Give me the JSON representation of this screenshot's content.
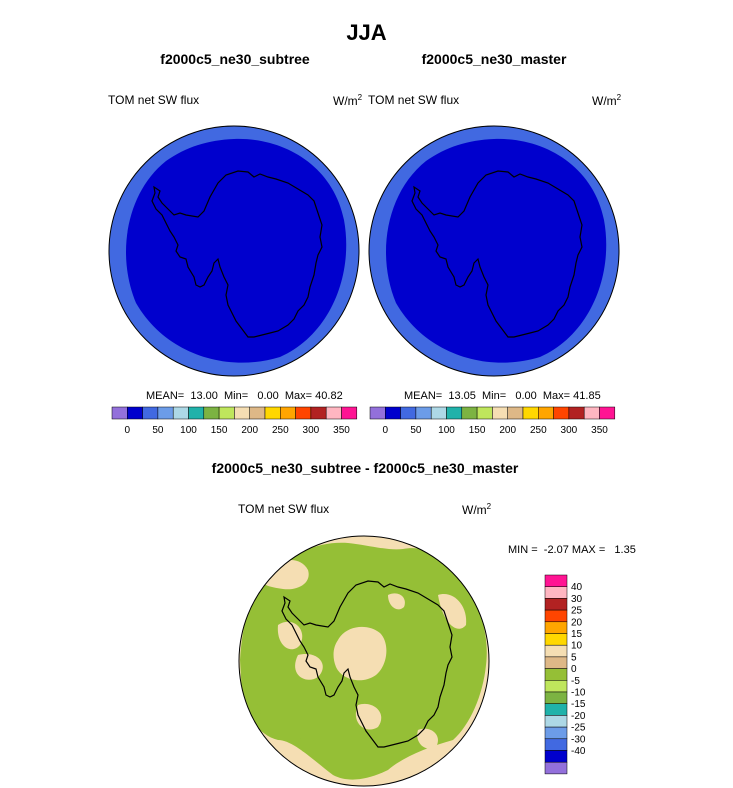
{
  "page": {
    "title": "JJA",
    "colors": {
      "deep_blue": "#0000CD",
      "royal_blue": "#4169E1",
      "olive_green": "#95BF36",
      "wheat": "#F5DEB3",
      "coastline": "#000000"
    }
  },
  "chart_data": [
    {
      "type": "heatmap",
      "projection": "south-polar-stereographic",
      "title": "f2000c5_ne30_subtree",
      "variable_label": "TOM net SW flux",
      "units": "W/m",
      "units_exp": "2",
      "stats": {
        "mean_label": "MEAN=",
        "mean": "13.00",
        "min_label": "Min=",
        "min": "0.00",
        "max_label": "Max=",
        "max": "40.82"
      },
      "colorbar": {
        "orientation": "horizontal",
        "colors": [
          "#9370DB",
          "#0000CD",
          "#4169E1",
          "#6C9CE8",
          "#ADD8E6",
          "#20B2AA",
          "#7CB342",
          "#BFE65C",
          "#F5DEB3",
          "#DEB887",
          "#FFD700",
          "#FFA500",
          "#FF4500",
          "#B22222",
          "#FFB6C1",
          "#FF1493"
        ],
        "tick_labels": [
          "0",
          "50",
          "100",
          "150",
          "200",
          "250",
          "300",
          "350"
        ]
      },
      "fields": [
        {
          "name": "outer-band",
          "value_range": "50-100",
          "color": "#4169E1"
        },
        {
          "name": "inner-region",
          "value_range": "0-50",
          "color": "#0000CD"
        }
      ]
    },
    {
      "type": "heatmap",
      "projection": "south-polar-stereographic",
      "title": "f2000c5_ne30_master",
      "variable_label": "TOM net SW flux",
      "units": "W/m",
      "units_exp": "2",
      "stats": {
        "mean_label": "MEAN=",
        "mean": "13.05",
        "min_label": "Min=",
        "min": "0.00",
        "max_label": "Max=",
        "max": "41.85"
      },
      "colorbar": {
        "orientation": "horizontal",
        "colors": [
          "#9370DB",
          "#0000CD",
          "#4169E1",
          "#6C9CE8",
          "#ADD8E6",
          "#20B2AA",
          "#7CB342",
          "#BFE65C",
          "#F5DEB3",
          "#DEB887",
          "#FFD700",
          "#FFA500",
          "#FF4500",
          "#B22222",
          "#FFB6C1",
          "#FF1493"
        ],
        "tick_labels": [
          "0",
          "50",
          "100",
          "150",
          "200",
          "250",
          "300",
          "350"
        ]
      },
      "fields": [
        {
          "name": "outer-band",
          "value_range": "50-100",
          "color": "#4169E1"
        },
        {
          "name": "inner-region",
          "value_range": "0-50",
          "color": "#0000CD"
        }
      ]
    },
    {
      "type": "heatmap",
      "projection": "south-polar-stereographic",
      "title": "f2000c5_ne30_subtree - f2000c5_ne30_master",
      "variable_label": "TOM net SW flux",
      "units": "W/m",
      "units_exp": "2",
      "stats": {
        "min_label": "MIN =",
        "min": "-2.07",
        "max_label": "MAX =",
        "max": "1.35"
      },
      "colorbar": {
        "orientation": "vertical",
        "colors_top_to_bottom": [
          "#FF1493",
          "#FFB6C1",
          "#B22222",
          "#FF4500",
          "#FFA500",
          "#FFD700",
          "#F5DEB3",
          "#DEB887",
          "#95BF36",
          "#BFE65C",
          "#7CB342",
          "#20B2AA",
          "#ADD8E6",
          "#6C9CE8",
          "#4169E1",
          "#0000CD",
          "#9370DB"
        ],
        "tick_labels_top_to_bottom": [
          "40",
          "30",
          "25",
          "20",
          "15",
          "10",
          "5",
          "0",
          "-5",
          "-10",
          "-15",
          "-20",
          "-25",
          "-30",
          "-40"
        ]
      },
      "fields": [
        {
          "name": "negative-difference",
          "value_range": "-5-0",
          "color": "#95BF36"
        },
        {
          "name": "positive-difference",
          "value_range": "0-5",
          "color": "#F5DEB3"
        }
      ]
    }
  ]
}
